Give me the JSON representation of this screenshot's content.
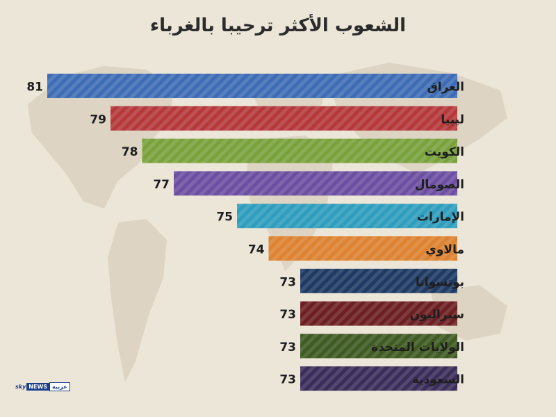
{
  "title": "الشعوب الأكثر ترحيبا بالغرباء",
  "logo": {
    "sky": "sky",
    "news": "NEWS",
    "arabia": "عربية"
  },
  "chart_data": {
    "type": "bar",
    "orientation": "horizontal",
    "title": "الشعوب الأكثر ترحيبا بالغرباء",
    "categories": [
      "العراق",
      "ليبيا",
      "الكويت",
      "الصومال",
      "الإمارات",
      "مالاوي",
      "بوتسوانا",
      "سيراليون",
      "الولايات المتحدة",
      "السعودية"
    ],
    "values": [
      81,
      79,
      78,
      77,
      75,
      74,
      73,
      73,
      73,
      73
    ],
    "colors": [
      "#3f6db5",
      "#b5393b",
      "#79a23c",
      "#6c4fa0",
      "#2f9dbd",
      "#dd8331",
      "#1f3a63",
      "#6d1f22",
      "#3f5a22",
      "#3b2d5a"
    ],
    "data_labels": true,
    "legend": "none",
    "grid": false
  }
}
